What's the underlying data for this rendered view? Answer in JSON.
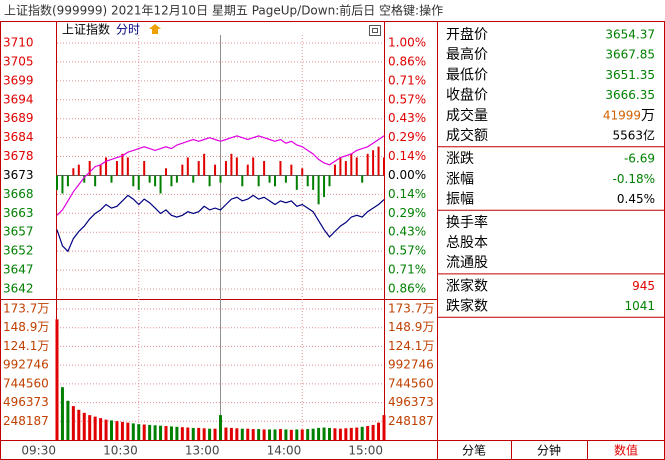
{
  "header": {
    "title": "上证指数(999999)  2021年12月10日 星期五  PageUp/Down:前后日 空格键:操作"
  },
  "chart_data": {
    "type": "line",
    "index_name": "上证指数",
    "mode": "分时",
    "categories": [
      "09:30",
      null,
      null,
      null,
      null,
      null,
      null,
      null,
      null,
      null,
      null,
      null,
      null,
      null,
      null,
      "10:30",
      null,
      null,
      null,
      null,
      null,
      null,
      null,
      null,
      null,
      null,
      null,
      null,
      null,
      null,
      "13:00",
      null,
      null,
      null,
      null,
      null,
      null,
      null,
      null,
      null,
      null,
      null,
      null,
      null,
      null,
      "14:00",
      null,
      null,
      null,
      null,
      null,
      null,
      null,
      null,
      null,
      null,
      null,
      null,
      null,
      null,
      "15:00"
    ],
    "ylim": [
      3641.56,
      3709.77
    ],
    "yticks": [
      {
        "value": 3709.77,
        "label": "3710"
      },
      {
        "value": 3704.52,
        "label": "3705"
      },
      {
        "value": 3699.28,
        "label": "3699"
      },
      {
        "value": 3694.03,
        "label": "3694"
      },
      {
        "value": 3688.78,
        "label": "3689"
      },
      {
        "value": 3683.54,
        "label": "3684"
      },
      {
        "value": 3678.29,
        "label": "3678"
      },
      {
        "value": 3673.04,
        "label": "3673"
      },
      {
        "value": 3667.79,
        "label": "3668"
      },
      {
        "value": 3662.55,
        "label": "3663"
      },
      {
        "value": 3657.3,
        "label": "3657"
      },
      {
        "value": 3652.05,
        "label": "3652"
      },
      {
        "value": 3646.81,
        "label": "3647"
      },
      {
        "value": 3641.56,
        "label": "3642"
      }
    ],
    "y2lim": [
      -0.8571,
      1
    ],
    "y2ticks": [
      {
        "value": 1,
        "label": "1.00%"
      },
      {
        "value": 0.8571,
        "label": "0.86%"
      },
      {
        "value": 0.7143,
        "label": "0.71%"
      },
      {
        "value": 0.5714,
        "label": "0.57%"
      },
      {
        "value": 0.4286,
        "label": "0.43%"
      },
      {
        "value": 0.2857,
        "label": "0.29%"
      },
      {
        "value": 0.1429,
        "label": "0.14%"
      },
      {
        "value": 0,
        "label": "0.00%"
      },
      {
        "value": -0.1429,
        "label": "0.14%"
      },
      {
        "value": -0.2857,
        "label": "0.29%"
      },
      {
        "value": -0.4286,
        "label": "0.43%"
      },
      {
        "value": -0.5714,
        "label": "0.57%"
      },
      {
        "value": -0.7143,
        "label": "0.71%"
      },
      {
        "value": -0.8571,
        "label": "0.86%"
      }
    ],
    "up_color": "#e00000",
    "down_color": "#008000",
    "grid": true,
    "series": [
      {
        "kind": "line",
        "color": "#e000e0",
        "values": [
          3662.0,
          3663.5,
          3666.0,
          3668.5,
          3670.5,
          3672.5,
          3674.0,
          3675.5,
          3676.0,
          3677.0,
          3677.5,
          3678.0,
          3678.5,
          3679.5,
          3680.0,
          3680.5,
          3681.0,
          3680.5,
          3680.0,
          3680.5,
          3681.0,
          3680.5,
          3681.5,
          3682.0,
          3682.5,
          3683.0,
          3682.5,
          3683.0,
          3683.5,
          3683.0,
          3682.5,
          3683.0,
          3683.5,
          3684.0,
          3683.5,
          3683.0,
          3683.5,
          3684.0,
          3683.5,
          3683.0,
          3682.5,
          3683.0,
          3682.0,
          3682.5,
          3681.5,
          3681.0,
          3680.0,
          3679.0,
          3677.5,
          3676.5,
          3676.0,
          3677.0,
          3678.0,
          3678.5,
          3679.0,
          3680.0,
          3680.5,
          3681.0,
          3682.0,
          3683.0,
          3684.0
        ]
      },
      {
        "kind": "line",
        "color": "#000080",
        "values": [
          3658.0,
          3653.5,
          3652.0,
          3655.5,
          3657.5,
          3659.0,
          3661.0,
          3662.5,
          3663.5,
          3665.0,
          3664.0,
          3664.5,
          3666.0,
          3667.5,
          3666.5,
          3665.0,
          3666.5,
          3665.5,
          3664.0,
          3662.5,
          3663.5,
          3662.0,
          3661.5,
          3662.0,
          3663.0,
          3662.5,
          3663.0,
          3664.5,
          3663.5,
          3664.0,
          3663.5,
          3665.0,
          3666.5,
          3667.0,
          3666.0,
          3666.5,
          3667.5,
          3666.5,
          3667.0,
          3666.0,
          3665.0,
          3666.0,
          3665.5,
          3666.0,
          3664.5,
          3665.0,
          3664.0,
          3663.0,
          3660.5,
          3658.0,
          3656.0,
          3657.5,
          3659.0,
          3660.0,
          3661.5,
          3662.0,
          3661.5,
          3663.0,
          3664.0,
          3665.0,
          3666.35
        ]
      },
      {
        "kind": "strength",
        "values": [
          -4,
          -5,
          -3,
          2,
          3,
          -2,
          4,
          -3,
          3,
          5,
          -2,
          4,
          6,
          5,
          -3,
          -4,
          4,
          -2,
          -3,
          -5,
          2,
          -3,
          -2,
          3,
          5,
          -2,
          4,
          6,
          -3,
          3,
          -2,
          4,
          6,
          5,
          -3,
          3,
          5,
          -3,
          4,
          -2,
          -3,
          4,
          -2,
          3,
          -4,
          2,
          -3,
          -4,
          -8,
          -6,
          -3,
          3,
          5,
          4,
          6,
          5,
          -2,
          6,
          7,
          8,
          5
        ]
      }
    ],
    "volume": {
      "ylim": [
        0,
        1737306
      ],
      "yticks": [
        {
          "value": 1737306,
          "label": "173.7万"
        },
        {
          "value": 1489120,
          "label": "148.9万"
        },
        {
          "value": 1240933,
          "label": "124.1万"
        },
        992746,
        744560,
        496373,
        248187
      ],
      "values": [
        1600000,
        700000,
        520000,
        450000,
        400000,
        360000,
        330000,
        310000,
        290000,
        270000,
        260000,
        250000,
        240000,
        230000,
        220000,
        210000,
        205000,
        200000,
        195000,
        190000,
        185000,
        180000,
        175000,
        170000,
        165000,
        160000,
        160000,
        155000,
        150000,
        150000,
        330000,
        165000,
        160000,
        155000,
        150000,
        150000,
        145000,
        145000,
        140000,
        140000,
        140000,
        145000,
        140000,
        135000,
        140000,
        140000,
        145000,
        150000,
        160000,
        165000,
        160000,
        155000,
        150000,
        155000,
        160000,
        165000,
        175000,
        185000,
        200000,
        230000,
        330000
      ]
    }
  },
  "stats": [
    [
      {
        "label": "开盘价",
        "value": "3654.37",
        "color": "#008000"
      },
      {
        "label": "最高价",
        "value": "3667.85",
        "color": "#008000"
      },
      {
        "label": "最低价",
        "value": "3651.35",
        "color": "#008000"
      },
      {
        "label": "收盘价",
        "value": "3666.35",
        "color": "#008000"
      },
      {
        "label": "成交量",
        "value": "41999",
        "unit": "万",
        "color": "#d06000"
      },
      {
        "label": "成交额",
        "value": "5563亿",
        "color": "#000000"
      }
    ],
    [
      {
        "label": "涨跌",
        "value": "-6.69",
        "color": "#008000"
      },
      {
        "label": "涨幅",
        "value": "-0.18%",
        "color": "#008000"
      },
      {
        "label": "振幅",
        "value": "0.45%",
        "color": "#000000"
      }
    ],
    [
      {
        "label": "换手率"
      },
      {
        "label": "总股本"
      },
      {
        "label": "流通股"
      }
    ],
    [
      {
        "label": "涨家数",
        "value": "945",
        "color": "#e00000"
      },
      {
        "label": "跌家数",
        "value": "1041",
        "color": "#008000"
      }
    ]
  ],
  "tabs": [
    {
      "label": "分笔",
      "color": "#000000"
    },
    {
      "label": "分钟",
      "color": "#000000"
    },
    {
      "label": "数值",
      "color": "#e00000"
    }
  ]
}
